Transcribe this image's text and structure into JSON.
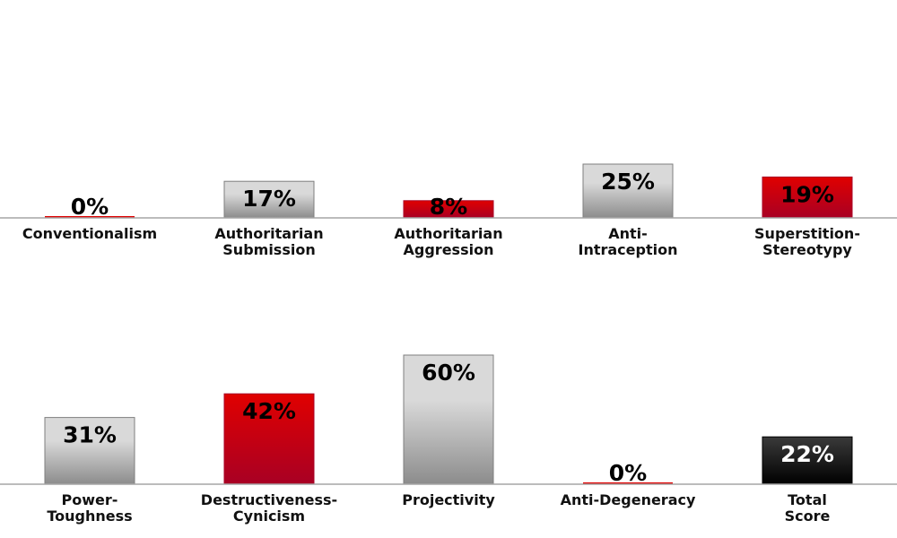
{
  "colors": {
    "red": "#e00000",
    "red_dark": "#a80024",
    "gray_light": "#d9d9d9",
    "gray_dark": "#8c8c8c",
    "black": "#000000",
    "black_top": "#3a3a3a",
    "baseline": "#a6a6a6"
  },
  "chart_data": {
    "type": "bar",
    "unit": "%",
    "ylim": [
      0,
      100
    ],
    "rows": [
      {
        "categories": [
          [
            "Conventionalism"
          ],
          [
            "Authoritarian",
            "Submission"
          ],
          [
            "Authoritarian",
            "Aggression"
          ],
          [
            "Anti-",
            "Intraception"
          ],
          [
            "Superstition-",
            "Stereotypy"
          ]
        ],
        "values": [
          0,
          17,
          8,
          25,
          19
        ],
        "value_labels": [
          "0%",
          "17%",
          "8%",
          "25%",
          "19%"
        ],
        "fills": [
          "red",
          "gray",
          "red",
          "gray",
          "red"
        ]
      },
      {
        "categories": [
          [
            "Power-",
            "Toughness"
          ],
          [
            "Destructiveness-",
            "Cynicism"
          ],
          [
            "Projectivity"
          ],
          [
            "Anti-Degeneracy"
          ],
          [
            "Total",
            "Score"
          ]
        ],
        "values": [
          31,
          42,
          60,
          0,
          22
        ],
        "value_labels": [
          "31%",
          "42%",
          "60%",
          "0%",
          "22%"
        ],
        "fills": [
          "gray",
          "red",
          "gray",
          "red",
          "black"
        ]
      }
    ]
  }
}
